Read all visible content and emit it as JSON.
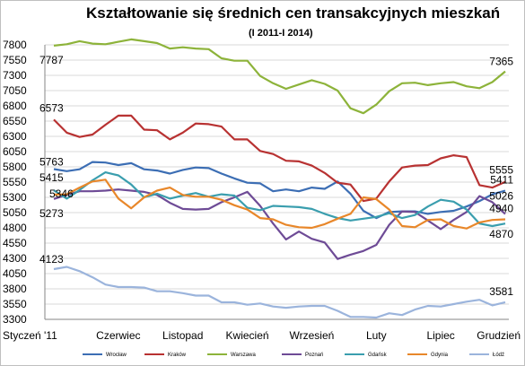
{
  "chart_data": {
    "type": "line",
    "title": "Kształtowanie się średnich cen transakcyjnych mieszkań",
    "subtitle": "(I 2011-I 2014)",
    "xlabel": "",
    "ylabel": "",
    "ylim": [
      3300,
      7800
    ],
    "yticks": [
      3300,
      3550,
      3800,
      4050,
      4300,
      4550,
      4800,
      5050,
      5300,
      5550,
      5800,
      6050,
      6300,
      6550,
      6800,
      7050,
      7300,
      7550,
      7800
    ],
    "x_tick_labels": [
      "Styczeń '11",
      "Czerwiec",
      "Listopad",
      "Kwiecień",
      "Wrzesień",
      "Luty",
      "Lipiec",
      "Grudzień"
    ],
    "x_tick_indices": [
      0,
      5,
      10,
      15,
      20,
      25,
      30,
      35
    ],
    "grid": true,
    "legend_position": "bottom",
    "series": [
      {
        "name": "Wrocław",
        "color": "#3C6EB4",
        "values": [
          5763,
          5730,
          5760,
          5880,
          5870,
          5830,
          5860,
          5760,
          5740,
          5690,
          5750,
          5790,
          5780,
          5690,
          5610,
          5540,
          5530,
          5400,
          5430,
          5400,
          5460,
          5440,
          5560,
          5360,
          5080,
          4960,
          5060,
          5070,
          5070,
          5030,
          5060,
          5080,
          5150,
          5240,
          5350,
          5411
        ],
        "label_start": "5763",
        "label_end": "5411"
      },
      {
        "name": "Kraków",
        "color": "#B83232",
        "values": [
          6573,
          6360,
          6290,
          6330,
          6490,
          6640,
          6640,
          6410,
          6400,
          6250,
          6360,
          6510,
          6500,
          6460,
          6250,
          6250,
          6060,
          6010,
          5900,
          5890,
          5820,
          5700,
          5540,
          5510,
          5240,
          5280,
          5560,
          5790,
          5820,
          5830,
          5940,
          5990,
          5960,
          5500,
          5460,
          5555
        ],
        "label_start": "6573",
        "label_end": "5555"
      },
      {
        "name": "Warszawa",
        "color": "#8DB33A",
        "values": [
          7787,
          7810,
          7860,
          7820,
          7810,
          7850,
          7890,
          7860,
          7830,
          7740,
          7760,
          7740,
          7730,
          7580,
          7540,
          7540,
          7290,
          7170,
          7080,
          7150,
          7220,
          7160,
          7050,
          6760,
          6680,
          6820,
          7040,
          7170,
          7180,
          7140,
          7170,
          7190,
          7120,
          7090,
          7190,
          7365
        ],
        "label_start": "7787",
        "label_end": "7365"
      },
      {
        "name": "Poznań",
        "color": "#6E4B96",
        "values": [
          5273,
          5340,
          5400,
          5400,
          5410,
          5430,
          5410,
          5390,
          5340,
          5210,
          5110,
          5100,
          5110,
          5220,
          5300,
          5390,
          5160,
          4870,
          4610,
          4740,
          4620,
          4560,
          4290,
          4360,
          4420,
          4520,
          4850,
          5070,
          5060,
          4920,
          4780,
          4930,
          5060,
          5320,
          5220,
          5026
        ],
        "label_start": "5273",
        "label_end": "5026"
      },
      {
        "name": "Gdańsk",
        "color": "#3A9EAE",
        "values": [
          5415,
          5280,
          5420,
          5580,
          5710,
          5660,
          5510,
          5300,
          5360,
          5280,
          5330,
          5370,
          5310,
          5350,
          5330,
          5130,
          5090,
          5160,
          5150,
          5140,
          5110,
          5030,
          4960,
          4920,
          4950,
          4980,
          5040,
          4960,
          5010,
          5150,
          5260,
          5230,
          5100,
          4870,
          4830,
          4870
        ],
        "label_start": "5415",
        "label_end": "4870"
      },
      {
        "name": "Gdynia",
        "color": "#E8872A",
        "values": [
          5346,
          5350,
          5460,
          5560,
          5590,
          5280,
          5120,
          5300,
          5410,
          5460,
          5340,
          5310,
          5310,
          5260,
          5170,
          5100,
          4960,
          4940,
          4850,
          4810,
          4800,
          4860,
          4950,
          5030,
          5300,
          5270,
          5100,
          4830,
          4810,
          4930,
          4940,
          4830,
          4790,
          4890,
          4930,
          4940
        ],
        "label_start": "5346",
        "label_end": "4940"
      },
      {
        "name": "Łódź",
        "color": "#9BB4DC",
        "values": [
          4123,
          4160,
          4090,
          3990,
          3870,
          3830,
          3830,
          3820,
          3760,
          3760,
          3730,
          3690,
          3690,
          3580,
          3580,
          3540,
          3560,
          3510,
          3490,
          3510,
          3520,
          3520,
          3440,
          3340,
          3340,
          3330,
          3400,
          3370,
          3460,
          3520,
          3510,
          3550,
          3590,
          3620,
          3530,
          3581
        ],
        "label_start": "4123",
        "label_end": "3581"
      }
    ]
  }
}
